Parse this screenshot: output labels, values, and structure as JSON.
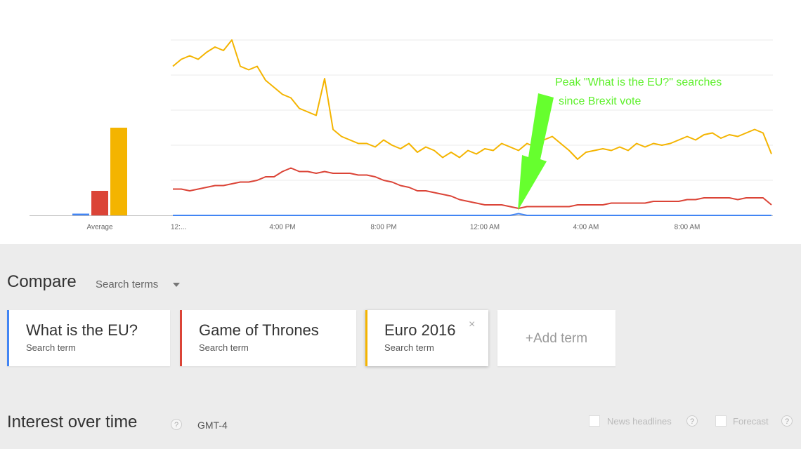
{
  "chart_data": [
    {
      "type": "bar",
      "categories": [
        "Average"
      ],
      "ylim": [
        0,
        100
      ],
      "series": [
        {
          "color": "#4285f4",
          "values": [
            1
          ]
        },
        {
          "color": "#db4437",
          "values": [
            14
          ]
        },
        {
          "color": "#f4b400",
          "values": [
            50
          ]
        }
      ]
    },
    {
      "type": "line",
      "ylim": [
        0,
        100
      ],
      "yticks": [
        0,
        20,
        40,
        60,
        80,
        100
      ],
      "grid": true,
      "annotation": [
        "Peak \"What is the EU?\" searches",
        "since Brexit vote"
      ],
      "categories": [
        "12:...",
        null,
        null,
        null,
        null,
        null,
        null,
        null,
        null,
        null,
        null,
        null,
        null,
        "4:00 PM",
        null,
        null,
        null,
        null,
        null,
        null,
        null,
        null,
        null,
        null,
        null,
        "8:00 PM",
        null,
        null,
        null,
        null,
        null,
        null,
        null,
        null,
        null,
        null,
        null,
        "12:00 AM",
        null,
        null,
        null,
        null,
        null,
        null,
        null,
        null,
        null,
        null,
        null,
        "4:00 AM",
        null,
        null,
        null,
        null,
        null,
        null,
        null,
        null,
        null,
        null,
        null,
        "8:00 AM",
        null,
        null,
        null,
        null,
        null,
        null,
        null,
        null,
        null,
        null
      ],
      "series": [
        {
          "name": "What is the EU?",
          "color": "#4285f4",
          "values": [
            0,
            0,
            0,
            0,
            0,
            0,
            0,
            0,
            0,
            0,
            0,
            0,
            0,
            0,
            0,
            0,
            0,
            0,
            0,
            0,
            0,
            0,
            0,
            0,
            0,
            0,
            0,
            0,
            0,
            0,
            0,
            0,
            0,
            0,
            0,
            0,
            0,
            0,
            0,
            0,
            0,
            1,
            0,
            0,
            0,
            0,
            0,
            0,
            0,
            0,
            0,
            0,
            0,
            0,
            0,
            0,
            0,
            0,
            0,
            0,
            0,
            0,
            0,
            0,
            0,
            0,
            0,
            0,
            0,
            0,
            0,
            0
          ]
        },
        {
          "name": "Game of Thrones",
          "color": "#db4437",
          "values": [
            15,
            15,
            14,
            15,
            16,
            17,
            17,
            18,
            19,
            19,
            20,
            22,
            22,
            25,
            27,
            25,
            25,
            24,
            25,
            24,
            24,
            24,
            23,
            23,
            22,
            20,
            19,
            17,
            16,
            14,
            14,
            13,
            12,
            11,
            9,
            8,
            7,
            6,
            6,
            6,
            5,
            4,
            5,
            5,
            5,
            5,
            5,
            5,
            6,
            6,
            6,
            6,
            7,
            7,
            7,
            7,
            7,
            8,
            8,
            8,
            8,
            9,
            9,
            10,
            10,
            10,
            10,
            9,
            10,
            10,
            10,
            6
          ]
        },
        {
          "name": "Euro 2016",
          "color": "#f4b400",
          "values": [
            85,
            89,
            91,
            89,
            93,
            96,
            94,
            100,
            85,
            83,
            85,
            77,
            73,
            69,
            67,
            61,
            59,
            57,
            78,
            49,
            45,
            43,
            41,
            41,
            39,
            43,
            40,
            38,
            41,
            36,
            39,
            37,
            33,
            36,
            33,
            37,
            35,
            38,
            37,
            41,
            39,
            37,
            41,
            39,
            43,
            45,
            41,
            37,
            32,
            36,
            37,
            38,
            37,
            39,
            37,
            41,
            39,
            41,
            40,
            41,
            43,
            45,
            43,
            46,
            47,
            44,
            46,
            45,
            47,
            49,
            47,
            35
          ]
        }
      ]
    }
  ],
  "compare": {
    "title": "Compare",
    "dropdown": "Search terms",
    "term_label": "Search term",
    "remove_icon": "×",
    "add_term": "+Add term"
  },
  "interest": {
    "title": "Interest over time",
    "help_icon": "?",
    "timezone": "GMT-4",
    "options": [
      "News headlines",
      "Forecast"
    ]
  }
}
